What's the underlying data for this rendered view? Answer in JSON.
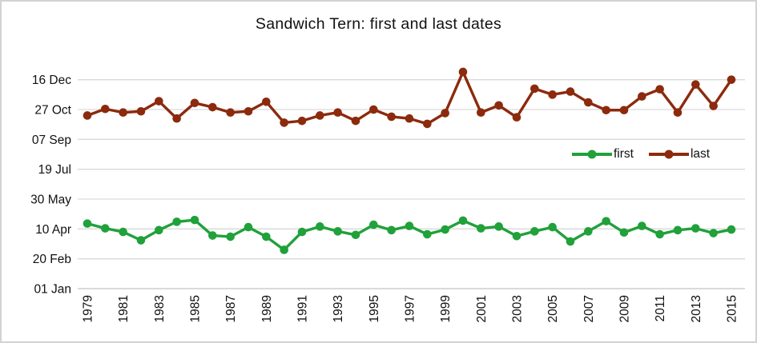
{
  "frame": {
    "border_color": "#d2d2d2",
    "background_color": "#ffffff"
  },
  "chart_data": {
    "type": "line",
    "title": "Sandwich Tern: first and last dates",
    "grid": true,
    "grid_color": "#d9d9d9",
    "axis_line_color": "#c3c3c3",
    "text_color": "#111111",
    "legend_position": "inside-right-middle",
    "x": [
      1979,
      1980,
      1981,
      1982,
      1983,
      1984,
      1985,
      1986,
      1987,
      1988,
      1989,
      1990,
      1991,
      1992,
      1993,
      1994,
      1995,
      1996,
      1997,
      1998,
      1999,
      2000,
      2001,
      2002,
      2003,
      2004,
      2005,
      2006,
      2007,
      2008,
      2009,
      2010,
      2011,
      2012,
      2013,
      2014,
      2015
    ],
    "x_tick_labels": [
      "1979",
      "1981",
      "1983",
      "1985",
      "1987",
      "1989",
      "1991",
      "1993",
      "1995",
      "1997",
      "1999",
      "2001",
      "2003",
      "2005",
      "2007",
      "2009",
      "2011",
      "2013",
      "2015"
    ],
    "y_axis": {
      "value_encoding": "day of year",
      "range": [
        1,
        400
      ],
      "ticks": [
        {
          "label": "01 Jan",
          "day": 1
        },
        {
          "label": "20 Feb",
          "day": 51
        },
        {
          "label": "10 Apr",
          "day": 101
        },
        {
          "label": "30 May",
          "day": 151
        },
        {
          "label": "19 Jul",
          "day": 201
        },
        {
          "label": "07 Sep",
          "day": 251
        },
        {
          "label": "27 Oct",
          "day": 301
        },
        {
          "label": "16 Dec",
          "day": 351
        }
      ]
    },
    "series": [
      {
        "name": "first",
        "color": "#20A13A",
        "values": [
          110,
          102,
          96,
          82,
          99,
          113,
          116,
          90,
          88,
          104,
          88,
          66,
          96,
          105,
          97,
          91,
          108,
          99,
          106,
          92,
          100,
          115,
          102,
          105,
          89,
          97,
          104,
          80,
          97,
          114,
          95,
          106,
          92,
          99,
          102,
          94,
          100
        ]
      },
      {
        "name": "last",
        "color": "#8C2A0D",
        "values": [
          291,
          302,
          296,
          298,
          315,
          286,
          312,
          305,
          296,
          298,
          314,
          279,
          282,
          291,
          296,
          282,
          301,
          289,
          286,
          277,
          295,
          364,
          296,
          308,
          288,
          336,
          326,
          331,
          313,
          300,
          300,
          323,
          335,
          296,
          343,
          307,
          351
        ]
      }
    ]
  }
}
